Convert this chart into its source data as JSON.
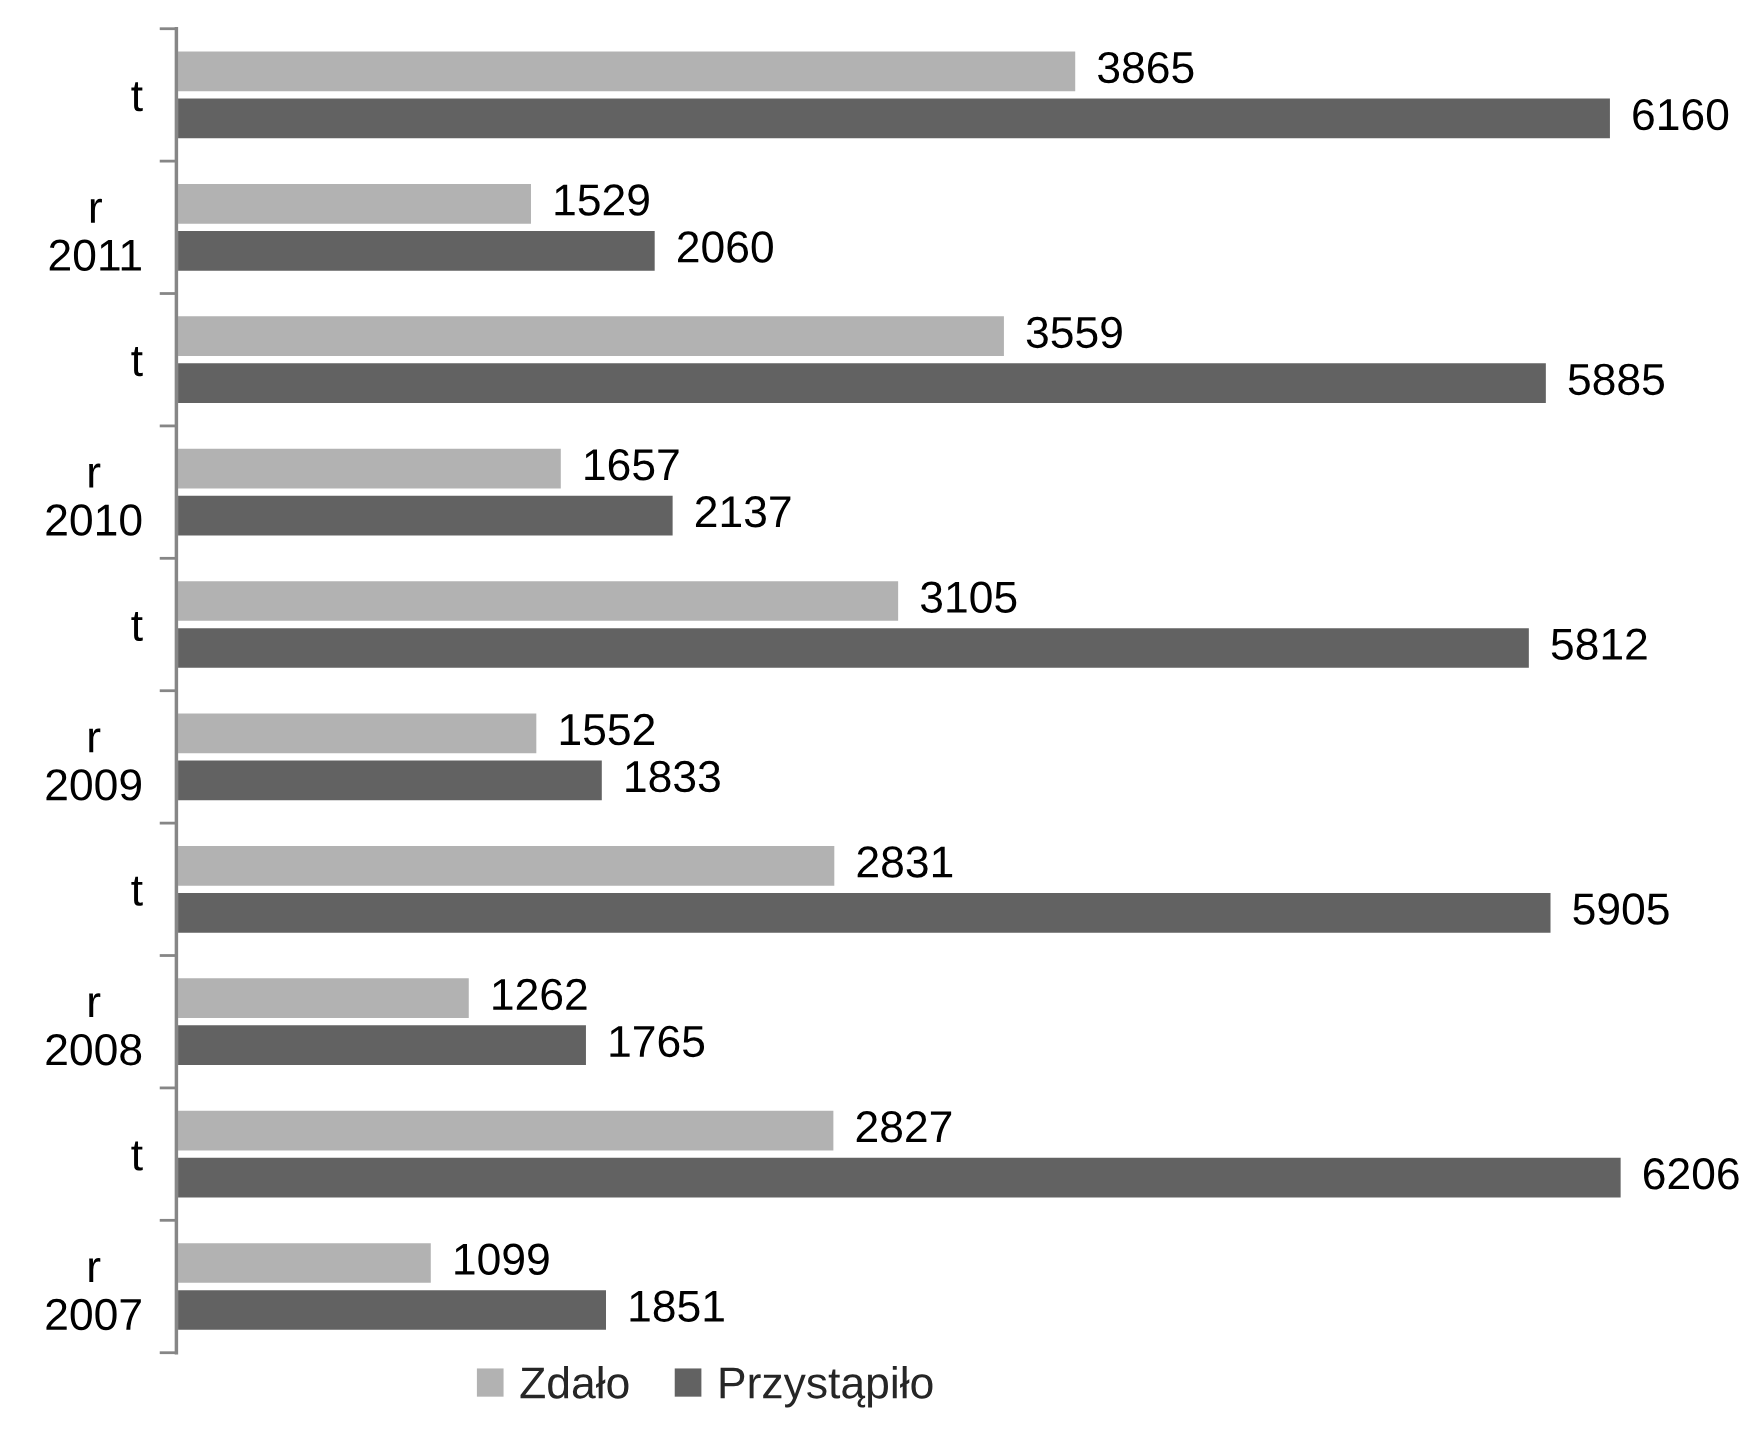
{
  "chart_data": {
    "type": "bar",
    "orientation": "horizontal",
    "categories": [
      "t",
      "r\n2011",
      "t",
      "r\n2010",
      "t",
      "r\n2009",
      "t",
      "r\n2008",
      "t",
      "r\n2007"
    ],
    "series": [
      {
        "name": "Zdało",
        "color": "#b2b2b2",
        "values": [
          3865,
          1529,
          3559,
          1657,
          3105,
          1552,
          2831,
          1262,
          2827,
          1099
        ]
      },
      {
        "name": "Przystąpiło",
        "color": "#626262",
        "values": [
          6160,
          2060,
          5885,
          2137,
          5812,
          1833,
          5905,
          1765,
          6206,
          1851
        ]
      }
    ],
    "data_labels": true,
    "legend": "bottom",
    "grid": false,
    "tick_labels": "y"
  }
}
